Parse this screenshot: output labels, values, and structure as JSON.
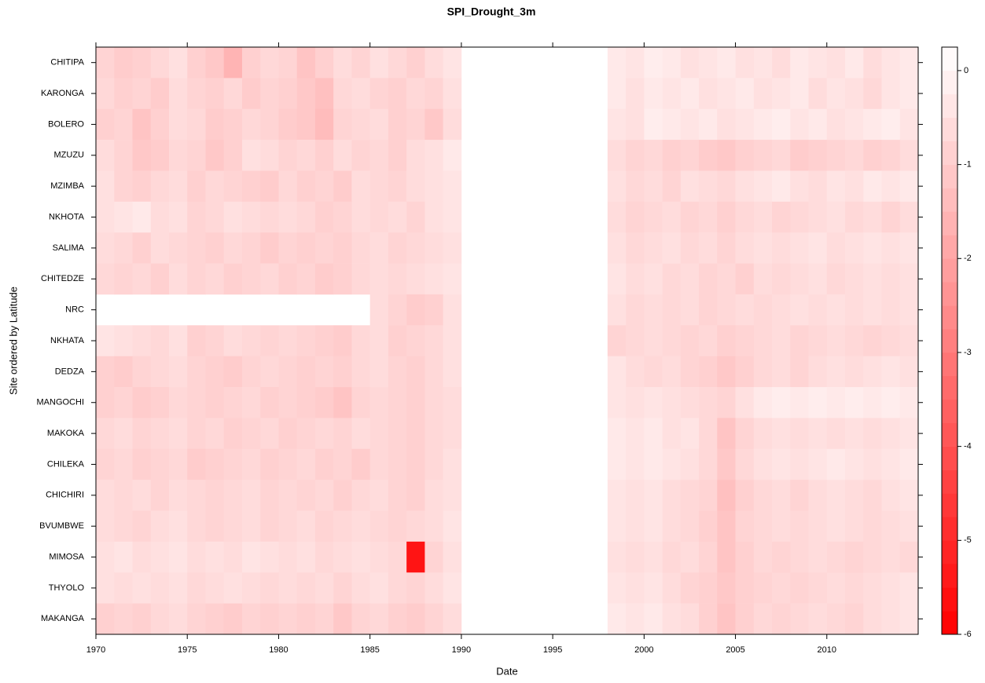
{
  "chart_data": {
    "type": "heatmap",
    "title": "SPI_Drought_3m",
    "x_label": "Date",
    "y_label": "Site ordered by Latitude",
    "xlim": [
      1970,
      2015
    ],
    "xticks": [
      1970,
      1975,
      1980,
      1985,
      1990,
      1995,
      2000,
      2005,
      2010
    ],
    "x": [
      1970,
      1971,
      1972,
      1973,
      1974,
      1975,
      1976,
      1977,
      1978,
      1979,
      1980,
      1981,
      1982,
      1983,
      1984,
      1985,
      1986,
      1987,
      1988,
      1989,
      1990,
      1991,
      1992,
      1993,
      1994,
      1995,
      1996,
      1997,
      1998,
      1999,
      2000,
      2001,
      2002,
      2003,
      2004,
      2005,
      2006,
      2007,
      2008,
      2009,
      2010,
      2011,
      2012,
      2013,
      2014
    ],
    "color_low": "#ff0000",
    "color_high": "#ffffff",
    "colorbar_lim": [
      -6,
      0.25
    ],
    "colorbar_ticks": [
      0,
      -1,
      -2,
      -3,
      -4,
      -5,
      -6
    ],
    "series": [
      {
        "name": "CHITIPA",
        "values": [
          -0.8,
          -1.0,
          -0.9,
          -0.7,
          -0.5,
          -0.9,
          -1.1,
          -1.6,
          -0.9,
          -0.7,
          -0.8,
          -1.2,
          -0.9,
          -0.6,
          -0.8,
          -0.5,
          -0.7,
          -0.9,
          -0.6,
          -0.4,
          null,
          null,
          null,
          null,
          null,
          null,
          null,
          null,
          -0.3,
          -0.4,
          -0.2,
          -0.3,
          -0.5,
          -0.4,
          -0.3,
          -0.5,
          -0.4,
          -0.6,
          -0.3,
          -0.4,
          -0.5,
          -0.3,
          -0.6,
          -0.4,
          -0.3
        ]
      },
      {
        "name": "KARONGA",
        "values": [
          -0.7,
          -0.9,
          -0.8,
          -1.0,
          -0.6,
          -0.8,
          -0.9,
          -0.7,
          -1.0,
          -0.8,
          -0.9,
          -1.1,
          -1.3,
          -0.7,
          -0.6,
          -0.8,
          -0.9,
          -0.7,
          -0.8,
          -0.5,
          null,
          null,
          null,
          null,
          null,
          null,
          null,
          null,
          -0.3,
          -0.5,
          -0.3,
          -0.4,
          -0.3,
          -0.5,
          -0.4,
          -0.3,
          -0.5,
          -0.4,
          -0.3,
          -0.6,
          -0.4,
          -0.5,
          -0.7,
          -0.4,
          -0.3
        ]
      },
      {
        "name": "BOLERO",
        "values": [
          -0.9,
          -0.8,
          -1.2,
          -0.9,
          -0.6,
          -0.7,
          -1.0,
          -0.9,
          -0.7,
          -0.8,
          -1.0,
          -1.1,
          -1.4,
          -0.8,
          -0.7,
          -0.6,
          -0.9,
          -0.8,
          -1.1,
          -0.6,
          null,
          null,
          null,
          null,
          null,
          null,
          null,
          null,
          -0.4,
          -0.5,
          -0.2,
          -0.3,
          -0.4,
          -0.3,
          -0.5,
          -0.4,
          -0.3,
          -0.2,
          -0.4,
          -0.3,
          -0.5,
          -0.4,
          -0.3,
          -0.2,
          -0.4
        ]
      },
      {
        "name": "MZUZU",
        "values": [
          -0.6,
          -0.8,
          -1.1,
          -1.0,
          -0.7,
          -0.8,
          -1.1,
          -0.9,
          -0.5,
          -0.6,
          -0.8,
          -0.7,
          -0.9,
          -0.6,
          -0.8,
          -0.7,
          -0.9,
          -0.6,
          -0.5,
          -0.3,
          null,
          null,
          null,
          null,
          null,
          null,
          null,
          null,
          -0.6,
          -0.8,
          -0.7,
          -0.9,
          -0.8,
          -1.0,
          -1.1,
          -0.9,
          -0.8,
          -0.7,
          -1.0,
          -0.9,
          -0.8,
          -0.7,
          -0.9,
          -0.8,
          -0.6
        ]
      },
      {
        "name": "MZIMBA",
        "values": [
          -0.5,
          -0.8,
          -0.9,
          -0.7,
          -0.6,
          -0.9,
          -0.7,
          -0.8,
          -0.9,
          -1.0,
          -0.7,
          -0.9,
          -0.8,
          -1.0,
          -0.6,
          -0.7,
          -0.8,
          -0.6,
          -0.5,
          -0.4,
          null,
          null,
          null,
          null,
          null,
          null,
          null,
          null,
          -0.5,
          -0.7,
          -0.6,
          -0.8,
          -0.5,
          -0.6,
          -0.7,
          -0.5,
          -0.4,
          -0.3,
          -0.5,
          -0.6,
          -0.4,
          -0.5,
          -0.3,
          -0.4,
          -0.3
        ]
      },
      {
        "name": "NKHOTA",
        "values": [
          -0.5,
          -0.4,
          -0.3,
          -0.6,
          -0.5,
          -0.8,
          -0.7,
          -0.5,
          -0.6,
          -0.7,
          -0.6,
          -0.7,
          -0.9,
          -0.8,
          -0.6,
          -0.7,
          -0.6,
          -0.8,
          -0.5,
          -0.4,
          null,
          null,
          null,
          null,
          null,
          null,
          null,
          null,
          -0.6,
          -0.8,
          -0.7,
          -0.6,
          -0.8,
          -0.7,
          -0.9,
          -0.7,
          -0.6,
          -0.8,
          -0.7,
          -0.6,
          -0.5,
          -0.7,
          -0.6,
          -0.8,
          -0.6
        ]
      },
      {
        "name": "SALIMA",
        "values": [
          -0.6,
          -0.7,
          -0.9,
          -0.6,
          -0.7,
          -0.8,
          -0.9,
          -0.7,
          -0.8,
          -1.0,
          -0.8,
          -0.9,
          -0.8,
          -0.9,
          -0.7,
          -0.6,
          -0.8,
          -0.7,
          -0.6,
          -0.5,
          null,
          null,
          null,
          null,
          null,
          null,
          null,
          null,
          -0.5,
          -0.7,
          -0.6,
          -0.5,
          -0.7,
          -0.6,
          -0.8,
          -0.6,
          -0.5,
          -0.6,
          -0.5,
          -0.4,
          -0.6,
          -0.5,
          -0.4,
          -0.5,
          -0.4
        ]
      },
      {
        "name": "CHITEDZE",
        "values": [
          -0.7,
          -0.8,
          -0.7,
          -0.9,
          -0.6,
          -0.8,
          -0.7,
          -0.9,
          -0.8,
          -0.7,
          -0.9,
          -0.8,
          -1.0,
          -0.9,
          -0.7,
          -0.6,
          -0.7,
          -0.6,
          -0.5,
          -0.4,
          null,
          null,
          null,
          null,
          null,
          null,
          null,
          null,
          -0.4,
          -0.6,
          -0.5,
          -0.7,
          -0.6,
          -0.8,
          -0.7,
          -0.9,
          -0.6,
          -0.7,
          -0.6,
          -0.5,
          -0.7,
          -0.6,
          -0.5,
          -0.6,
          -0.5
        ]
      },
      {
        "name": "NRC",
        "values": [
          null,
          null,
          null,
          null,
          null,
          null,
          null,
          null,
          null,
          null,
          null,
          null,
          null,
          null,
          null,
          -0.6,
          -0.8,
          -1.0,
          -0.9,
          -0.5,
          null,
          null,
          null,
          null,
          null,
          null,
          null,
          null,
          -0.5,
          -0.7,
          -0.6,
          -0.7,
          -0.6,
          -0.8,
          -0.7,
          -0.6,
          -0.7,
          -0.6,
          -0.5,
          -0.6,
          -0.5,
          -0.6,
          -0.5,
          -0.6,
          -0.5
        ]
      },
      {
        "name": "NKHATA",
        "values": [
          -0.4,
          -0.5,
          -0.6,
          -0.7,
          -0.5,
          -0.9,
          -0.8,
          -0.6,
          -0.7,
          -0.8,
          -0.7,
          -0.8,
          -0.9,
          -1.0,
          -0.7,
          -0.6,
          -0.9,
          -0.8,
          -0.7,
          -0.5,
          null,
          null,
          null,
          null,
          null,
          null,
          null,
          null,
          -0.8,
          -0.7,
          -0.6,
          -0.7,
          -0.8,
          -0.7,
          -0.9,
          -0.8,
          -0.7,
          -0.6,
          -0.8,
          -0.7,
          -0.6,
          -0.7,
          -0.8,
          -0.7,
          -0.6
        ]
      },
      {
        "name": "DEDZA",
        "values": [
          -0.9,
          -1.0,
          -0.8,
          -0.7,
          -0.6,
          -0.8,
          -0.9,
          -1.0,
          -0.8,
          -0.7,
          -0.8,
          -0.9,
          -0.8,
          -0.9,
          -0.7,
          -0.6,
          -0.8,
          -0.9,
          -0.7,
          -0.5,
          null,
          null,
          null,
          null,
          null,
          null,
          null,
          null,
          -0.4,
          -0.6,
          -0.7,
          -0.6,
          -0.8,
          -0.9,
          -1.1,
          -0.9,
          -0.7,
          -0.6,
          -0.8,
          -0.6,
          -0.5,
          -0.6,
          -0.5,
          -0.4,
          -0.5
        ]
      },
      {
        "name": "MANGOCHI",
        "values": [
          -0.9,
          -0.8,
          -1.0,
          -0.9,
          -0.7,
          -0.8,
          -0.9,
          -0.8,
          -0.7,
          -0.9,
          -0.8,
          -0.9,
          -1.0,
          -1.2,
          -0.8,
          -0.7,
          -0.8,
          -0.9,
          -0.7,
          -0.6,
          null,
          null,
          null,
          null,
          null,
          null,
          null,
          null,
          -0.4,
          -0.5,
          -0.4,
          -0.5,
          -0.6,
          -0.7,
          -0.8,
          -0.5,
          -0.3,
          -0.2,
          -0.3,
          -0.2,
          -0.3,
          -0.2,
          -0.3,
          -0.2,
          -0.3
        ]
      },
      {
        "name": "MAKOKA",
        "values": [
          -0.7,
          -0.6,
          -0.8,
          -0.7,
          -0.6,
          -0.8,
          -0.7,
          -0.9,
          -0.8,
          -0.7,
          -0.9,
          -0.8,
          -0.7,
          -0.8,
          -0.6,
          -0.7,
          -0.8,
          -0.9,
          -0.7,
          -0.6,
          null,
          null,
          null,
          null,
          null,
          null,
          null,
          null,
          -0.3,
          -0.4,
          -0.3,
          -0.5,
          -0.4,
          -0.7,
          -1.2,
          -0.8,
          -0.6,
          -0.5,
          -0.6,
          -0.5,
          -0.6,
          -0.5,
          -0.6,
          -0.5,
          -0.4
        ]
      },
      {
        "name": "CHILEKA",
        "values": [
          -0.8,
          -0.7,
          -0.9,
          -0.8,
          -0.7,
          -1.0,
          -0.9,
          -0.8,
          -0.7,
          -0.9,
          -0.8,
          -0.7,
          -0.9,
          -0.8,
          -1.0,
          -0.7,
          -0.8,
          -0.9,
          -0.7,
          -0.5,
          null,
          null,
          null,
          null,
          null,
          null,
          null,
          null,
          -0.3,
          -0.4,
          -0.3,
          -0.4,
          -0.5,
          -0.7,
          -1.1,
          -0.7,
          -0.5,
          -0.4,
          -0.5,
          -0.4,
          -0.3,
          -0.4,
          -0.5,
          -0.4,
          -0.3
        ]
      },
      {
        "name": "CHICHIRI",
        "values": [
          -0.6,
          -0.7,
          -0.6,
          -0.8,
          -0.6,
          -0.7,
          -0.8,
          -0.7,
          -0.6,
          -0.8,
          -0.7,
          -0.8,
          -0.7,
          -0.9,
          -0.7,
          -0.6,
          -0.8,
          -0.9,
          -0.6,
          -0.5,
          null,
          null,
          null,
          null,
          null,
          null,
          null,
          null,
          -0.4,
          -0.5,
          -0.4,
          -0.6,
          -0.7,
          -0.8,
          -1.3,
          -0.9,
          -0.7,
          -0.6,
          -0.8,
          -0.6,
          -0.5,
          -0.6,
          -0.7,
          -0.5,
          -0.4
        ]
      },
      {
        "name": "BVUMBWE",
        "values": [
          -0.6,
          -0.7,
          -0.8,
          -0.6,
          -0.5,
          -0.7,
          -0.8,
          -0.7,
          -0.6,
          -0.8,
          -0.7,
          -0.6,
          -0.8,
          -0.7,
          -0.6,
          -0.7,
          -0.8,
          -0.7,
          -0.6,
          -0.4,
          null,
          null,
          null,
          null,
          null,
          null,
          null,
          null,
          -0.4,
          -0.5,
          -0.4,
          -0.6,
          -0.7,
          -0.9,
          -1.2,
          -0.8,
          -0.7,
          -0.6,
          -0.7,
          -0.6,
          -0.5,
          -0.6,
          -0.7,
          -0.6,
          -0.5
        ]
      },
      {
        "name": "MIMOSA",
        "values": [
          -0.5,
          -0.4,
          -0.6,
          -0.5,
          -0.4,
          -0.6,
          -0.5,
          -0.6,
          -0.4,
          -0.5,
          -0.6,
          -0.5,
          -0.7,
          -0.6,
          -0.5,
          -0.6,
          -0.7,
          -5.5,
          -0.8,
          -0.5,
          null,
          null,
          null,
          null,
          null,
          null,
          null,
          null,
          -0.5,
          -0.6,
          -0.5,
          -0.7,
          -0.6,
          -0.8,
          -1.2,
          -0.9,
          -0.7,
          -0.8,
          -0.7,
          -0.6,
          -0.7,
          -0.8,
          -0.7,
          -0.6,
          -0.7
        ]
      },
      {
        "name": "THYOLO",
        "values": [
          -0.5,
          -0.6,
          -0.5,
          -0.6,
          -0.5,
          -0.7,
          -0.6,
          -0.5,
          -0.6,
          -0.7,
          -0.6,
          -0.7,
          -0.6,
          -0.8,
          -0.6,
          -0.5,
          -0.7,
          -0.8,
          -0.6,
          -0.4,
          null,
          null,
          null,
          null,
          null,
          null,
          null,
          null,
          -0.4,
          -0.5,
          -0.4,
          -0.6,
          -0.8,
          -0.9,
          -1.1,
          -0.9,
          -0.8,
          -0.7,
          -0.8,
          -0.7,
          -0.6,
          -0.7,
          -0.6,
          -0.5,
          -0.4
        ]
      },
      {
        "name": "MAKANGA",
        "values": [
          -0.9,
          -0.8,
          -0.9,
          -0.7,
          -0.6,
          -0.8,
          -0.9,
          -1.0,
          -0.8,
          -0.9,
          -0.8,
          -0.9,
          -0.8,
          -1.1,
          -0.8,
          -0.7,
          -0.9,
          -1.0,
          -0.8,
          -0.6,
          null,
          null,
          null,
          null,
          null,
          null,
          null,
          null,
          -0.3,
          -0.4,
          -0.3,
          -0.5,
          -0.6,
          -0.9,
          -1.2,
          -0.9,
          -0.7,
          -0.8,
          -0.7,
          -0.6,
          -0.7,
          -0.8,
          -0.6,
          -0.5,
          -0.4
        ]
      }
    ]
  }
}
